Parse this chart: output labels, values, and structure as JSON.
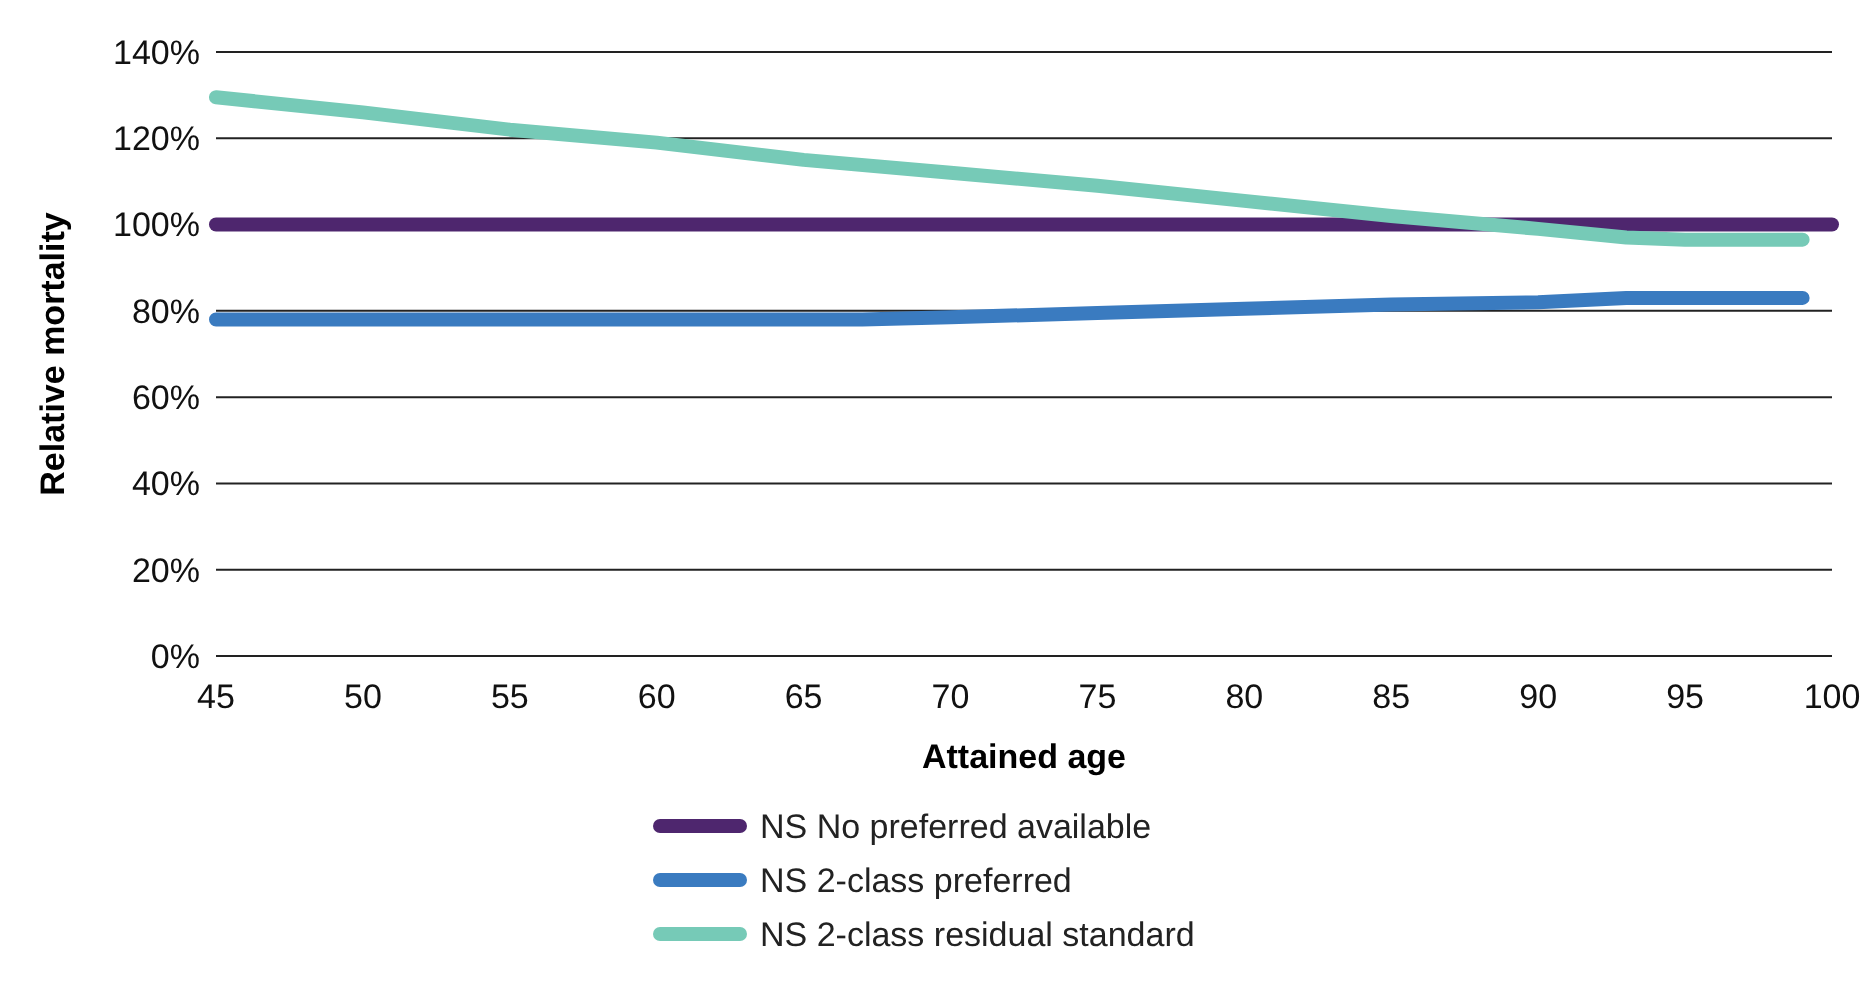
{
  "chart_data": {
    "type": "line",
    "xlabel": "Attained age",
    "ylabel": "Relative mortality",
    "xlim": [
      45,
      100
    ],
    "xticks": [
      45,
      50,
      55,
      60,
      65,
      70,
      75,
      80,
      85,
      90,
      95,
      100
    ],
    "ylim": [
      0,
      140
    ],
    "yticks": [
      {
        "value": 0,
        "label": "0%"
      },
      {
        "value": 20,
        "label": "20%"
      },
      {
        "value": 40,
        "label": "40%"
      },
      {
        "value": 60,
        "label": "60%"
      },
      {
        "value": 80,
        "label": "80%"
      },
      {
        "value": 100,
        "label": "100%"
      },
      {
        "value": 120,
        "label": "120%"
      },
      {
        "value": 140,
        "label": "140%"
      }
    ],
    "grid": "y",
    "legend": "bottom",
    "marker": "none",
    "line_style": "solid",
    "series": [
      {
        "name": "NS No preferred available",
        "color": "#4e266e",
        "x": [
          45,
          100
        ],
        "values": [
          100,
          100
        ]
      },
      {
        "name": "NS 2-class preferred",
        "color": "#3a7bc0",
        "x": [
          45,
          67,
          70,
          75,
          80,
          85,
          90,
          93,
          99
        ],
        "values": [
          78,
          78,
          78.5,
          79.5,
          80.5,
          81.5,
          82,
          83,
          83
        ]
      },
      {
        "name": "NS 2-class residual standard",
        "color": "#76cab7",
        "x": [
          45,
          50,
          55,
          60,
          65,
          70,
          75,
          80,
          85,
          90,
          93,
          95,
          99
        ],
        "values": [
          129.5,
          126,
          122,
          119,
          115,
          112,
          109,
          105.5,
          102,
          99,
          97,
          96.5,
          96.5
        ]
      }
    ]
  }
}
